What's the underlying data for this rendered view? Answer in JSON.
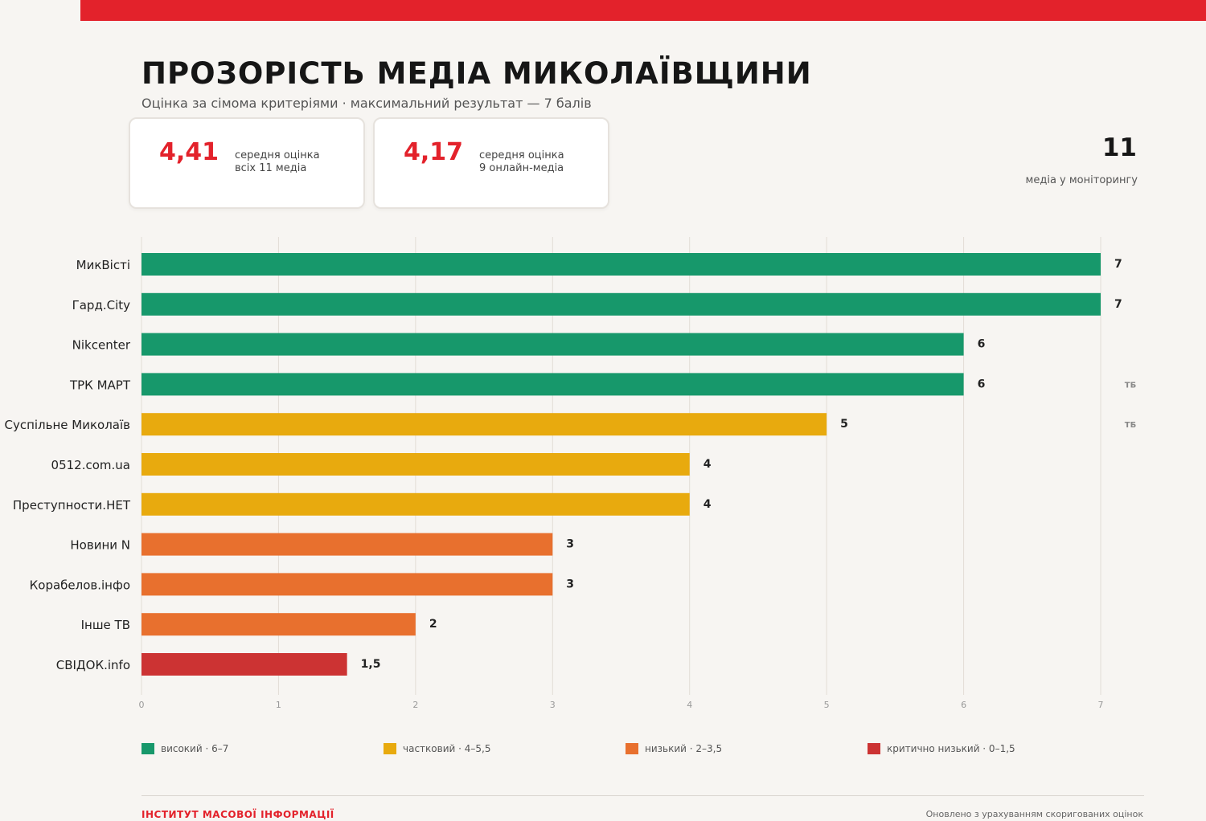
{
  "header": {
    "title": "ПРОЗОРІСТЬ МЕДІА МИКОЛАЇВЩИНИ",
    "subtitle": "Оцінка за сімома критеріями · максимальний результат — 7 балів"
  },
  "stats": [
    {
      "value": "4,41",
      "label_line1": "середня оцінка",
      "label_line2": "всіх 11 медіа"
    },
    {
      "value": "4,17",
      "label_line1": "середня оцінка",
      "label_line2": "9 онлайн-медіа"
    }
  ],
  "monitoring": {
    "count": "11",
    "label": "медіа у моніторингу"
  },
  "legend": [
    {
      "label": "високий · 6–7",
      "color": "#17986b"
    },
    {
      "label": "частковий · 4–5,5",
      "color": "#e8aa0e"
    },
    {
      "label": "низький · 2–3,5",
      "color": "#e8702e"
    },
    {
      "label": "критично низький · 0–1,5",
      "color": "#cc3333"
    }
  ],
  "footer": {
    "left": "ІНСТИТУТ МАСОВОЇ ІНФОРМАЦІЇ",
    "right": "Оновлено з урахуванням скоригованих оцінок"
  },
  "chart_data": {
    "type": "bar",
    "orientation": "horizontal",
    "categories": [
      "МикВісті",
      "Гард.City",
      "Nikcenter",
      "ТРК МАРТ",
      "Суспільне Миколаїв",
      "0512.com.ua",
      "Преступности.НЕТ",
      "Новини N",
      "Корабелов.інфо",
      "Інше ТВ",
      "СВІДОК.info"
    ],
    "values": [
      7,
      7,
      6,
      6,
      5,
      4,
      4,
      3,
      3,
      2,
      1.5
    ],
    "value_labels": [
      "7",
      "7",
      "6",
      "6",
      "5",
      "4",
      "4",
      "3",
      "3",
      "2",
      "1,5"
    ],
    "colors": [
      "#17986b",
      "#17986b",
      "#17986b",
      "#17986b",
      "#e8aa0e",
      "#e8aa0e",
      "#e8aa0e",
      "#e8702e",
      "#e8702e",
      "#e8702e",
      "#cc3333"
    ],
    "tags": [
      "",
      "",
      "",
      "ТБ",
      "ТБ",
      "",
      "",
      "",
      "",
      "",
      ""
    ],
    "xlim": [
      0,
      7
    ],
    "xticks": [
      0,
      1,
      2,
      3,
      4,
      5,
      6,
      7
    ],
    "grid": true
  }
}
